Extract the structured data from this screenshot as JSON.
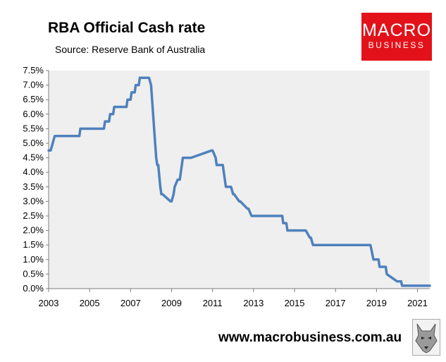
{
  "chart_data": {
    "type": "line",
    "title": "RBA Official Cash rate",
    "subtitle": "Source: Reserve Bank of Australia",
    "xlabel": "",
    "ylabel": "",
    "xlim": [
      2003.0,
      2021.6
    ],
    "ylim": [
      0,
      7.5
    ],
    "grid": false,
    "legend": "none",
    "x_ticks": [
      "2003",
      "2005",
      "2007",
      "2009",
      "2011",
      "2013",
      "2015",
      "2017",
      "2019",
      "2021"
    ],
    "x_tick_values": [
      2003,
      2005,
      2007,
      2009,
      2011,
      2013,
      2015,
      2017,
      2019,
      2021
    ],
    "y_ticks": [
      "0.0%",
      "0.5%",
      "1.0%",
      "1.5%",
      "2.0%",
      "2.5%",
      "3.0%",
      "3.5%",
      "4.0%",
      "4.5%",
      "5.0%",
      "5.5%",
      "6.0%",
      "6.5%",
      "7.0%",
      "7.5%"
    ],
    "y_tick_values": [
      0,
      0.5,
      1.0,
      1.5,
      2.0,
      2.5,
      3.0,
      3.5,
      4.0,
      4.5,
      5.0,
      5.5,
      6.0,
      6.5,
      7.0,
      7.5
    ],
    "series": [
      {
        "color": "#4f81bd",
        "x": [
          2003.0,
          2003.1,
          2003.2,
          2003.3,
          2004.5,
          2004.55,
          2005.7,
          2005.75,
          2005.95,
          2006.0,
          2006.15,
          2006.2,
          2006.3,
          2006.35,
          2006.8,
          2006.85,
          2007.0,
          2007.05,
          2007.2,
          2007.25,
          2007.4,
          2007.45,
          2007.55,
          2007.6,
          2007.9,
          2008.0,
          2008.1,
          2008.2,
          2008.25,
          2008.3,
          2008.35,
          2008.45,
          2008.5,
          2008.55,
          2008.95,
          2009.0,
          2009.1,
          2009.15,
          2009.3,
          2009.4,
          2009.5,
          2009.55,
          2009.9,
          2009.95,
          2010.95,
          2011.0,
          2011.15,
          2011.2,
          2011.45,
          2011.5,
          2011.6,
          2011.65,
          2011.85,
          2011.9,
          2012.0,
          2012.05,
          2012.3,
          2012.35,
          2012.7,
          2012.75,
          2012.9,
          2012.95,
          2014.4,
          2014.45,
          2014.6,
          2014.65,
          2015.5,
          2015.55,
          2015.75,
          2015.8,
          2015.9,
          2015.95,
          2018.7,
          2018.75,
          2018.85,
          2018.9,
          2019.1,
          2019.15,
          2019.45,
          2019.5,
          2020.0,
          2020.05,
          2020.2,
          2020.25,
          2021.6
        ],
        "y": [
          4.75,
          4.75,
          5.0,
          5.25,
          5.25,
          5.5,
          5.5,
          5.75,
          5.75,
          6.0,
          6.0,
          6.25,
          6.25,
          6.25,
          6.25,
          6.5,
          6.5,
          6.75,
          6.75,
          7.0,
          7.0,
          7.25,
          7.25,
          7.25,
          7.25,
          7.0,
          6.0,
          5.0,
          4.5,
          4.25,
          4.25,
          3.5,
          3.25,
          3.25,
          3.0,
          3.0,
          3.25,
          3.5,
          3.75,
          3.75,
          4.25,
          4.5,
          4.5,
          4.5,
          4.75,
          4.75,
          4.5,
          4.25,
          4.25,
          4.25,
          3.75,
          3.5,
          3.5,
          3.5,
          3.25,
          3.25,
          3.0,
          3.0,
          2.75,
          2.75,
          2.5,
          2.5,
          2.5,
          2.25,
          2.25,
          2.0,
          2.0,
          2.0,
          1.75,
          1.75,
          1.5,
          1.5,
          1.5,
          1.35,
          1.0,
          1.0,
          1.0,
          0.75,
          0.75,
          0.5,
          0.25,
          0.25,
          0.25,
          0.1,
          0.1
        ]
      }
    ]
  },
  "branding": {
    "logo_line1": "MACRO",
    "logo_line2": "BUSINESS",
    "url": "www.macrobusiness.com.au",
    "logo_color": "#e3121a"
  }
}
